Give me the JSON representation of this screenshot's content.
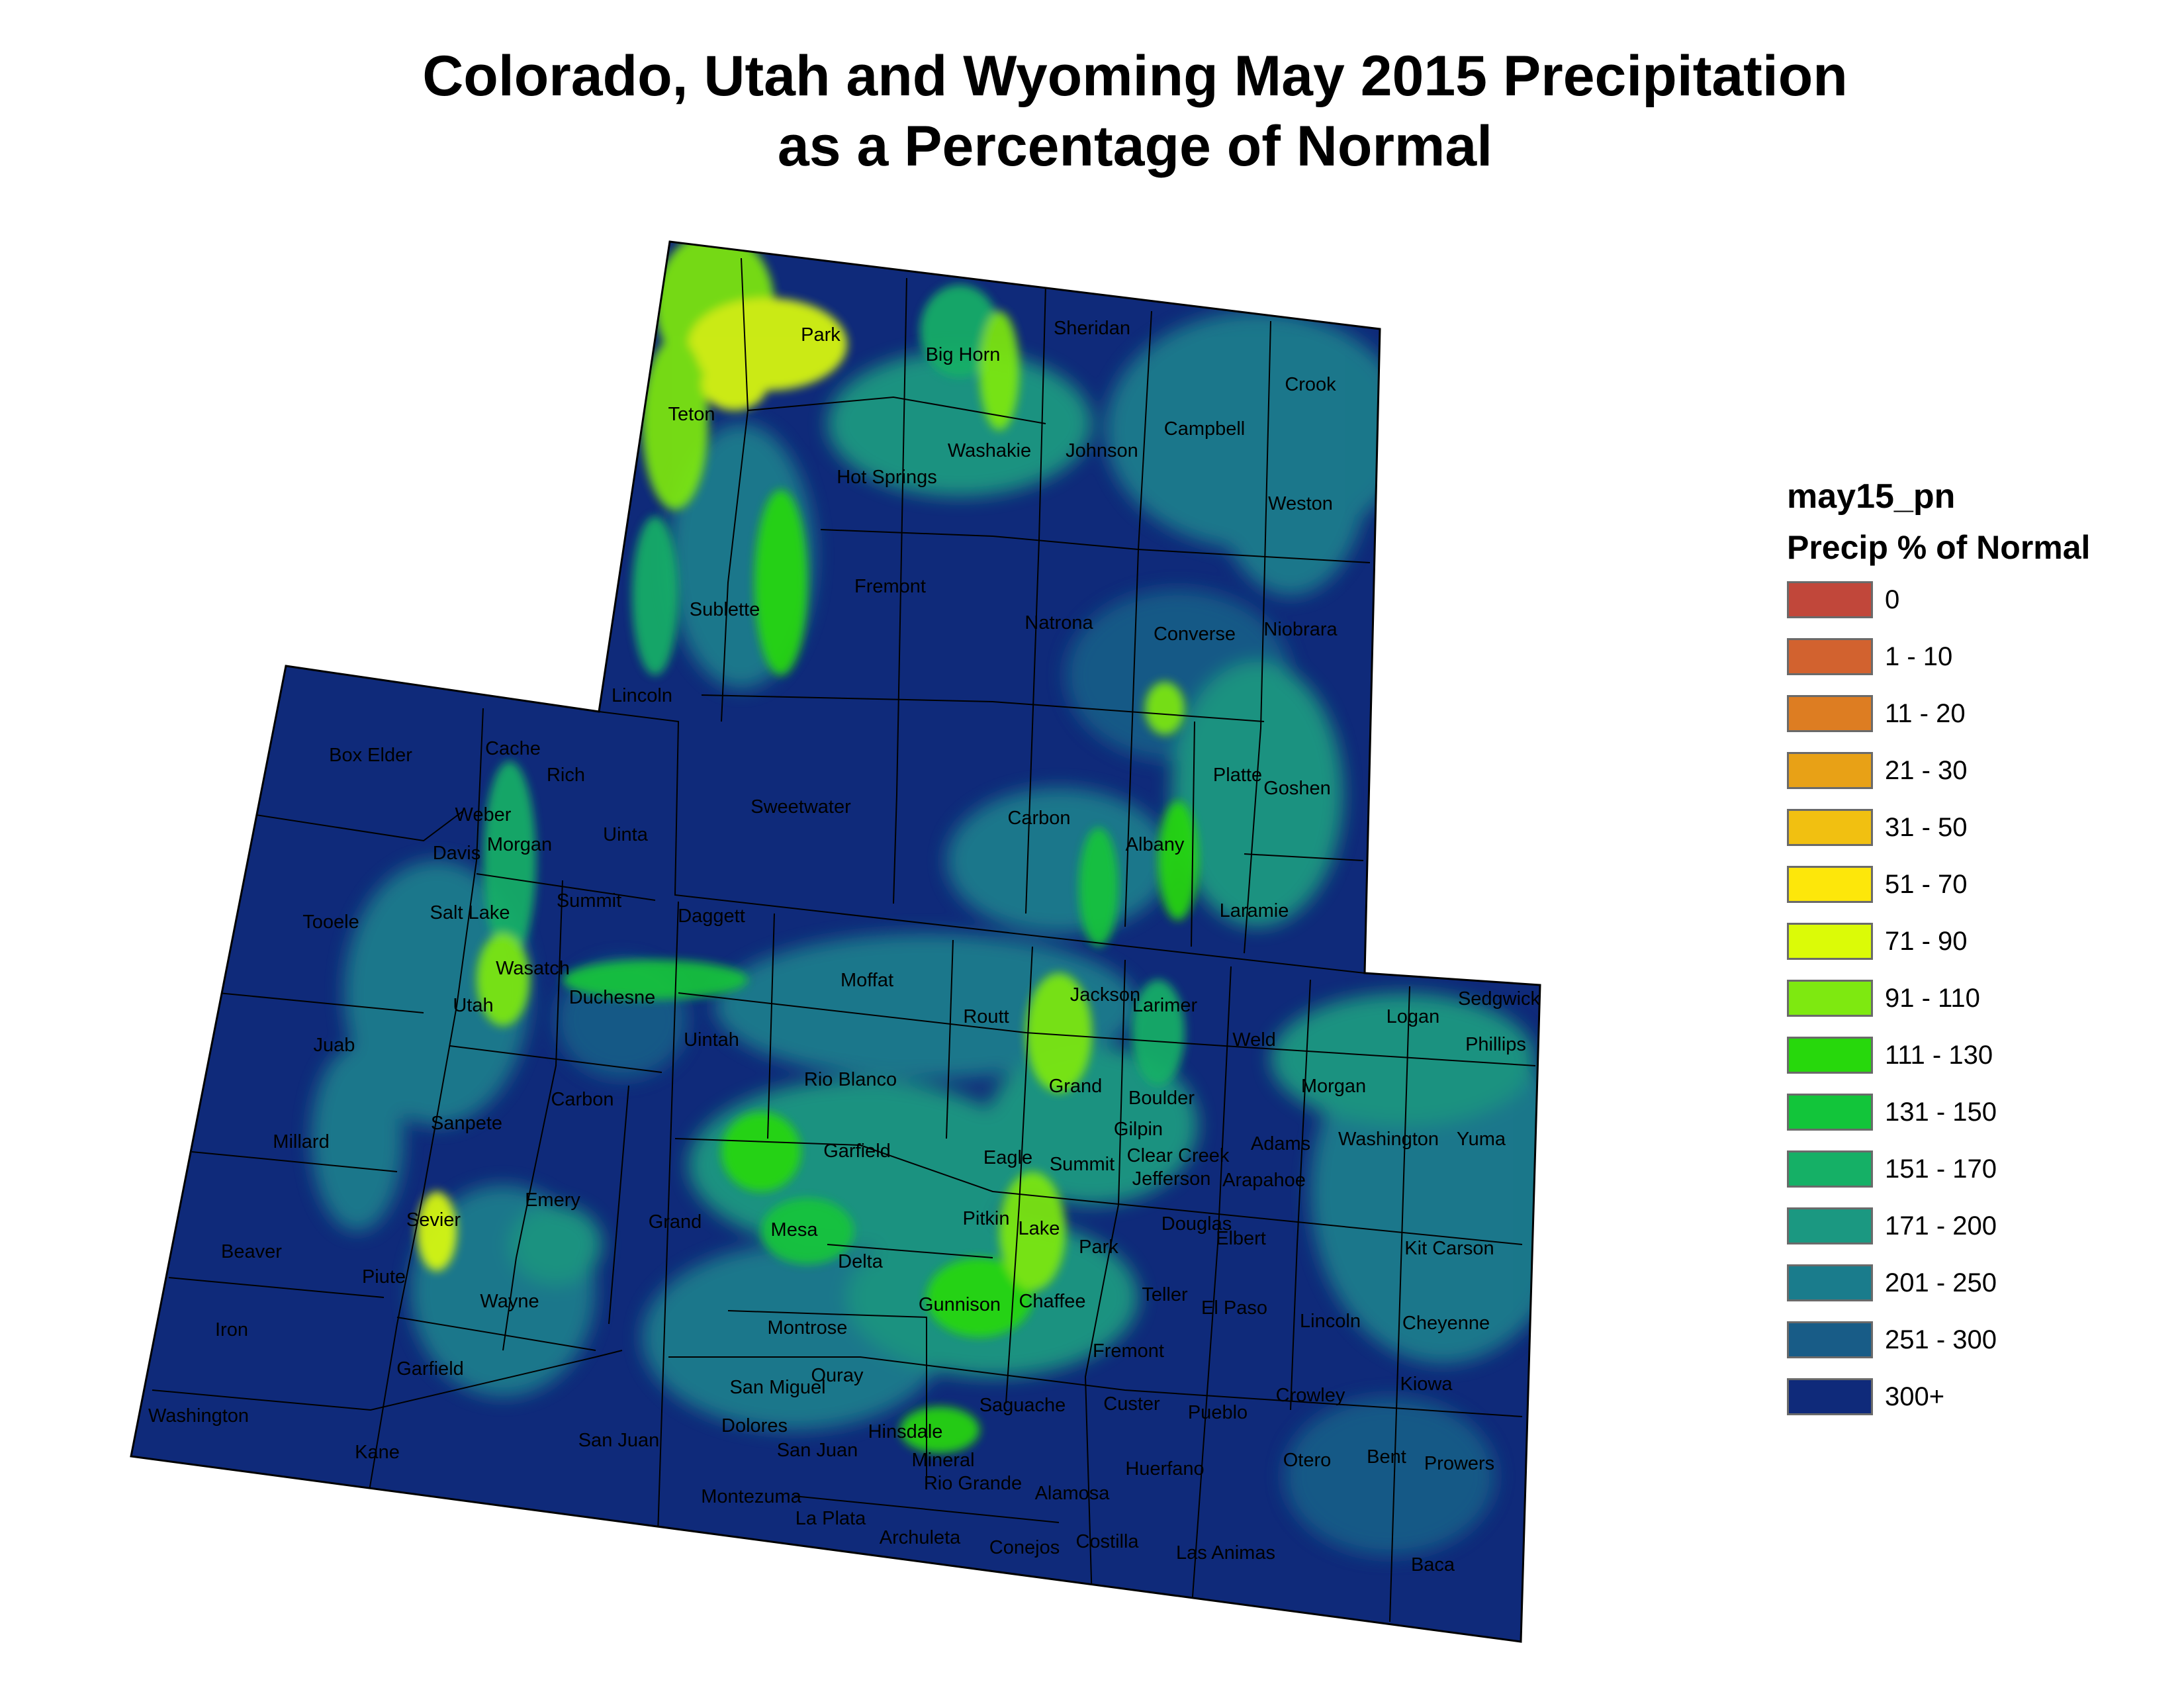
{
  "title": {
    "line1": "Colorado, Utah and Wyoming May 2015 Precipitation",
    "line2": "as a Percentage of Normal"
  },
  "legend": {
    "layer_name": "may15_pn",
    "title": "Precip % of Normal",
    "items": [
      {
        "label": "0",
        "color": "#c1473a"
      },
      {
        "label": "1 - 10",
        "color": "#d2622f"
      },
      {
        "label": "11 - 20",
        "color": "#dd7d22"
      },
      {
        "label": "21 - 30",
        "color": "#e8a116"
      },
      {
        "label": "31 - 50",
        "color": "#f1c011"
      },
      {
        "label": "51 - 70",
        "color": "#fde70a"
      },
      {
        "label": "71 - 90",
        "color": "#dbfb07"
      },
      {
        "label": "91 - 110",
        "color": "#7ee910"
      },
      {
        "label": "111 - 130",
        "color": "#27d80c"
      },
      {
        "label": "131 - 150",
        "color": "#12c53a"
      },
      {
        "label": "151 - 170",
        "color": "#15b066"
      },
      {
        "label": "171 - 200",
        "color": "#1b9881"
      },
      {
        "label": "201 - 250",
        "color": "#1a7c8c"
      },
      {
        "label": "251 - 300",
        "color": "#185c87"
      },
      {
        "label": "300+",
        "color": "#0f2a7a"
      }
    ]
  },
  "counties": {
    "wyoming": [
      "Park",
      "Big Horn",
      "Sheridan",
      "Crook",
      "Teton",
      "Campbell",
      "Washakie",
      "Johnson",
      "Hot Springs",
      "Weston",
      "Fremont",
      "Sublette",
      "Natrona",
      "Converse",
      "Niobrara",
      "Lincoln",
      "Platte",
      "Goshen",
      "Sweetwater",
      "Carbon",
      "Uinta",
      "Albany",
      "Laramie"
    ],
    "utah": [
      "Box Elder",
      "Cache",
      "Rich",
      "Weber",
      "Morgan",
      "Davis",
      "Tooele",
      "Salt Lake",
      "Summit",
      "Daggett",
      "Wasatch",
      "Utah",
      "Duchesne",
      "Uintah",
      "Juab",
      "Carbon",
      "Sanpete",
      "Millard",
      "Emery",
      "Sevier",
      "Grand",
      "Beaver",
      "Piute",
      "Wayne",
      "Iron",
      "Garfield",
      "Washington",
      "Kane",
      "San Juan"
    ],
    "colorado": [
      "Moffat",
      "Routt",
      "Jackson",
      "Larimer",
      "Logan",
      "Sedgwick",
      "Phillips",
      "Weld",
      "Morgan",
      "Rio Blanco",
      "Grand",
      "Boulder",
      "Gilpin",
      "Garfield",
      "Eagle",
      "Summit",
      "Clear Creek",
      "Adams",
      "Washington",
      "Yuma",
      "Jefferson",
      "Arapahoe",
      "Mesa",
      "Pitkin",
      "Lake",
      "Douglas",
      "Elbert",
      "Park",
      "Delta",
      "Kit Carson",
      "Gunnison",
      "Chaffee",
      "Teller",
      "El Paso",
      "Lincoln",
      "Cheyenne",
      "Montrose",
      "Fremont",
      "Ouray",
      "San Miguel",
      "Crowley",
      "Kiowa",
      "Saguache",
      "Custer",
      "Pueblo",
      "Dolores",
      "Hinsdale",
      "San Juan",
      "Mineral",
      "Huerfano",
      "Otero",
      "Bent",
      "Prowers",
      "Rio Grande",
      "Alamosa",
      "Montezuma",
      "La Plata",
      "Archuleta",
      "Conejos",
      "Costilla",
      "Las Animas",
      "Baca"
    ]
  }
}
